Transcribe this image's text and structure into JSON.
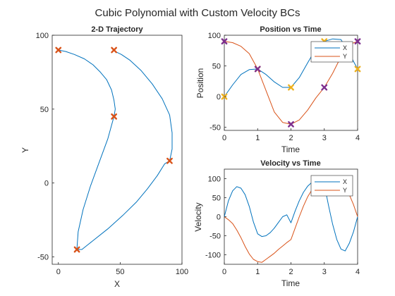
{
  "suptitle": "Cubic Polynomial with Custom Velocity BCs",
  "colors": {
    "x_line": "#0072BD",
    "y_line": "#D95319",
    "waypoint_2d": "#D95319",
    "marker_x": "#7E2F8E",
    "marker_y": "#EDB120",
    "axis": "#262626",
    "legend_border": "#262626"
  },
  "chart_data": [
    {
      "id": "trajectory",
      "type": "line",
      "title": "2-D Trajectory",
      "xlabel": "X",
      "ylabel": "Y",
      "xlim": [
        -5,
        100
      ],
      "ylim": [
        -55,
        100
      ],
      "xticks": [
        0,
        50,
        100
      ],
      "yticks": [
        -50,
        0,
        50,
        100
      ],
      "grid": false,
      "legend": null,
      "series": [
        {
          "x": [
            0,
            6,
            13,
            21,
            28,
            34,
            39,
            43,
            45,
            46,
            45,
            40,
            33,
            26,
            20,
            16,
            15,
            19,
            28,
            40,
            52,
            63,
            72,
            80,
            86,
            90,
            92,
            92,
            90,
            84,
            76,
            67,
            58,
            51,
            46,
            45
          ],
          "y": [
            90,
            89,
            87,
            84,
            80,
            75,
            70,
            63,
            56,
            50,
            45,
            30,
            14,
            -2,
            -18,
            -33,
            -45,
            -45,
            -39,
            -31,
            -22,
            -13,
            -4,
            5,
            13,
            15,
            23,
            34,
            46,
            57,
            67,
            76,
            83,
            87,
            89,
            90
          ]
        }
      ],
      "waypoints": {
        "x": [
          0,
          45,
          15,
          90,
          45
        ],
        "y": [
          90,
          45,
          -45,
          15,
          90
        ],
        "marker": "x-bold"
      }
    },
    {
      "id": "position",
      "type": "line",
      "title": "Position vs Time",
      "xlabel": "Time",
      "ylabel": "Position",
      "xlim": [
        0,
        4
      ],
      "ylim": [
        -55,
        100
      ],
      "xticks": [
        0,
        1,
        2,
        3,
        4
      ],
      "yticks": [
        -50,
        0,
        50,
        100
      ],
      "grid": false,
      "legend": "top-right",
      "x": [
        0,
        0.25,
        0.5,
        0.75,
        1,
        1.25,
        1.5,
        1.75,
        2,
        2.25,
        2.5,
        2.75,
        3,
        3.25,
        3.5,
        3.75,
        4
      ],
      "series": [
        {
          "name": "X",
          "values": [
            0,
            19,
            36,
            44,
            45,
            36,
            24,
            15,
            15,
            31,
            55,
            78,
            90,
            94,
            93,
            70,
            45
          ]
        },
        {
          "name": "Y",
          "values": [
            90,
            88,
            82,
            70,
            45,
            10,
            -25,
            -42,
            -45,
            -38,
            -22,
            -2,
            15,
            38,
            65,
            85,
            90
          ]
        }
      ],
      "markers": {
        "x_waypoints": {
          "t": [
            0,
            1,
            2,
            3,
            4
          ],
          "values": [
            0,
            45,
            15,
            90,
            45
          ]
        },
        "y_waypoints": {
          "t": [
            0,
            1,
            2,
            3,
            4
          ],
          "values": [
            90,
            45,
            -45,
            15,
            90
          ]
        }
      }
    },
    {
      "id": "velocity",
      "type": "line",
      "title": "Velocity vs Time",
      "xlabel": "Time",
      "ylabel": "Velocity",
      "xlim": [
        0,
        4
      ],
      "ylim": [
        -125,
        125
      ],
      "xticks": [
        0,
        1,
        2,
        3,
        4
      ],
      "yticks": [
        -100,
        -50,
        0,
        50,
        100
      ],
      "grid": false,
      "legend": "top-right",
      "x": [
        0,
        0.125,
        0.25,
        0.375,
        0.5,
        0.625,
        0.75,
        0.875,
        1,
        1.125,
        1.25,
        1.375,
        1.5,
        1.625,
        1.75,
        1.875,
        2,
        2.125,
        2.25,
        2.375,
        2.5,
        2.625,
        2.75,
        2.875,
        3,
        3.125,
        3.25,
        3.375,
        3.5,
        3.625,
        3.75,
        3.875,
        4
      ],
      "series": [
        {
          "name": "X",
          "values": [
            0,
            42,
            68,
            79,
            75,
            58,
            27,
            -14,
            -45,
            -52,
            -50,
            -42,
            -30,
            -15,
            0,
            5,
            -16,
            15,
            42,
            64,
            80,
            90,
            92,
            90,
            85,
            30,
            -20,
            -60,
            -85,
            -90,
            -70,
            -40,
            0
          ]
        },
        {
          "name": "Y",
          "values": [
            0,
            -8,
            -18,
            -35,
            -55,
            -78,
            -98,
            -112,
            -118,
            -120,
            -112,
            -104,
            -96,
            -86,
            -77,
            -68,
            -60,
            -30,
            0,
            28,
            52,
            70,
            86,
            95,
            100,
            102,
            100,
            95,
            88,
            75,
            58,
            32,
            0
          ]
        }
      ]
    }
  ]
}
